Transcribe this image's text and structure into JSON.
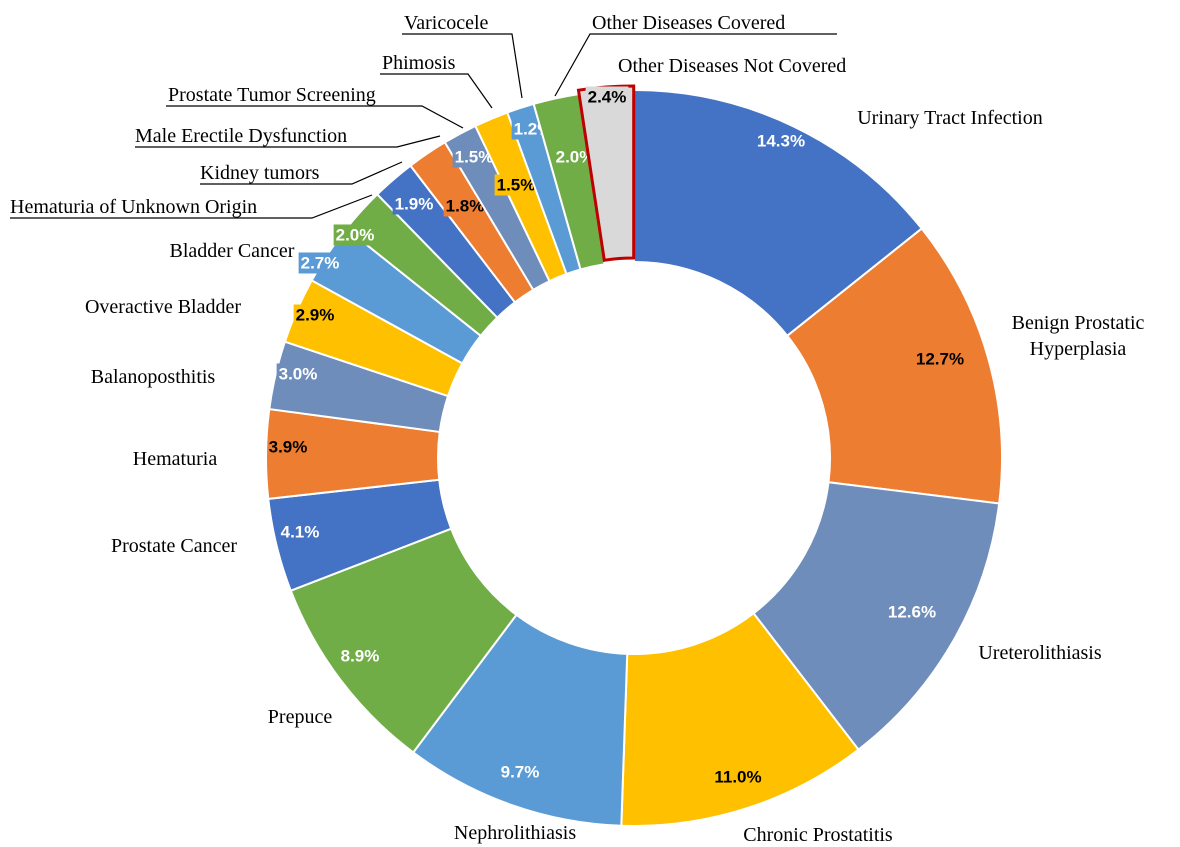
{
  "chart_data": {
    "type": "donut",
    "categories": [
      "Urinary Tract Infection",
      "Benign Prostatic Hyperplasia",
      "Ureterolithiasis",
      "Chronic Prostatitis",
      "Nephrolithiasis",
      "Prepuce",
      "Prostate Cancer",
      "Hematuria",
      "Balanoposthitis",
      "Overactive Bladder",
      "Bladder Cancer",
      "Hematuria of Unknown Origin",
      "Kidney tumors",
      "Male Erectile Dysfunction",
      "Prostate Tumor Screening",
      "Phimosis",
      "Varicocele",
      "Other Diseases Covered",
      "Other Diseases Not Covered"
    ],
    "values": [
      14.3,
      12.7,
      12.6,
      11.0,
      9.7,
      8.9,
      4.1,
      3.9,
      3.0,
      2.9,
      2.7,
      2.0,
      1.9,
      1.8,
      1.5,
      1.5,
      1.2,
      2.0,
      2.4
    ],
    "value_labels": [
      "14.3%",
      "12.7%",
      "12.6%",
      "11.0%",
      "9.7%",
      "8.9%",
      "4.1%",
      "3.9%",
      "3.0%",
      "2.9%",
      "2.7%",
      "2.0%",
      "1.9%",
      "1.8%",
      "1.5%",
      "1.5%",
      "1.2%",
      "2.0%",
      "2.4%"
    ],
    "colors": [
      "#4472c4",
      "#ed7d31",
      "#6f8dbb",
      "#ffc000",
      "#5b9bd5",
      "#70ad47",
      "#4472c4",
      "#ed7d31",
      "#6f8dbb",
      "#ffc000",
      "#5b9bd5",
      "#70ad47",
      "#4472c4",
      "#ed7d31",
      "#6f8dbb",
      "#ffc000",
      "#5b9bd5",
      "#70ad47",
      "#d9d9d9"
    ],
    "label_colors": [
      "#ffffff",
      "#000000",
      "#ffffff",
      "#000000",
      "#ffffff",
      "#ffffff",
      "#ffffff",
      "#000000",
      "#ffffff",
      "#000000",
      "#ffffff",
      "#ffffff",
      "#ffffff",
      "#000000",
      "#ffffff",
      "#000000",
      "#ffffff",
      "#ffffff",
      "#000000"
    ],
    "highlight": "Other Diseases Not Covered",
    "highlight_color": "#c00000"
  }
}
